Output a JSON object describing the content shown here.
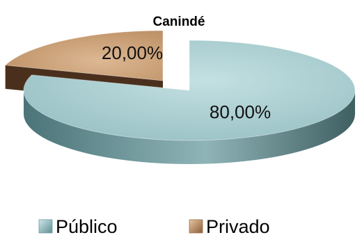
{
  "chart_data": {
    "type": "pie",
    "title": "Canindé",
    "categories": [
      "Público",
      "Privado"
    ],
    "values": [
      80,
      20
    ],
    "data_labels": [
      "80,00%",
      "20,00%"
    ],
    "exploded": [
      "Privado"
    ],
    "colors": [
      "#a9cdd0",
      "#c79c74"
    ],
    "legend": {
      "placement": "bottom",
      "entries": [
        "Público",
        "Privado"
      ]
    },
    "style": "3d"
  }
}
